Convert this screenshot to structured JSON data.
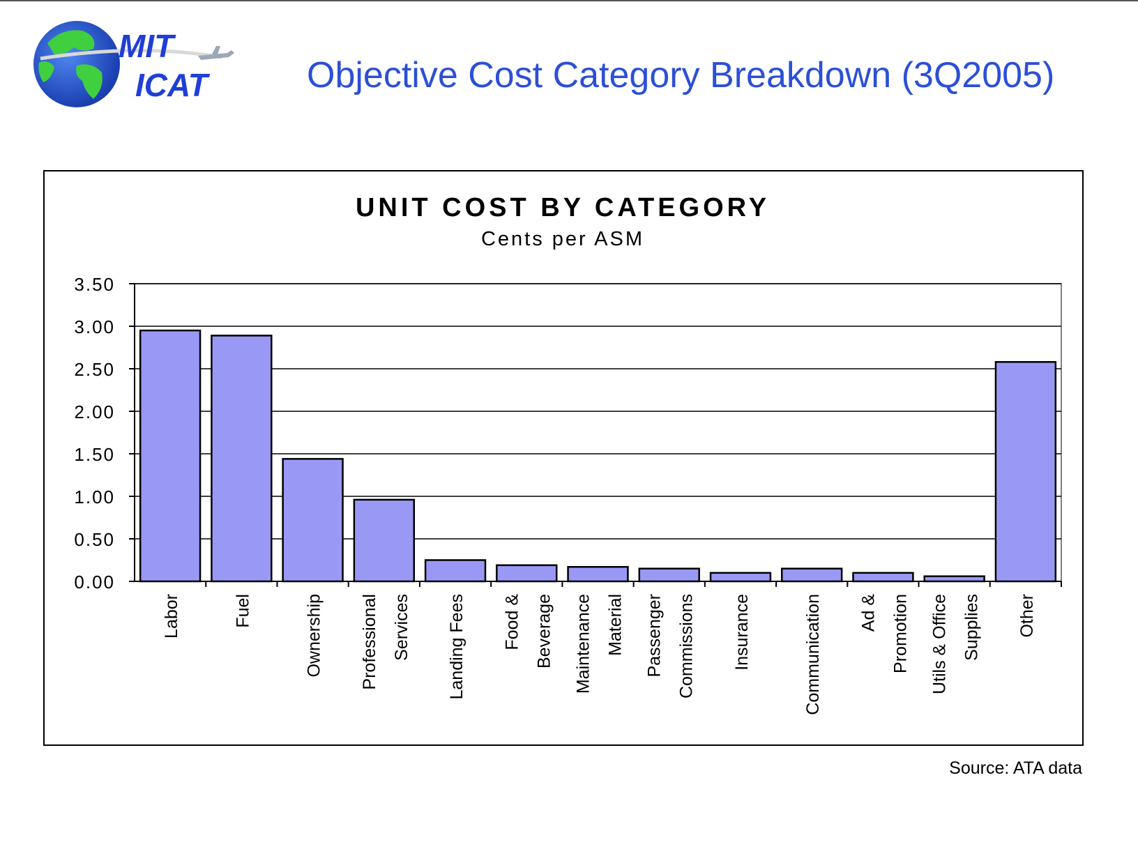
{
  "slide": {
    "title": "Objective Cost Category Breakdown (3Q2005)",
    "logo": {
      "line1": "MIT",
      "line2": "ICAT"
    },
    "source": "Source: ATA data"
  },
  "colors": {
    "bar_fill": "#9999f5",
    "title_color": "#2c4fd6",
    "logo_text": "#1f3fd6",
    "globe_ocean": "#2457d6",
    "globe_land": "#3fcf3f"
  },
  "chart_data": {
    "type": "bar",
    "title": "UNIT COST BY CATEGORY",
    "subtitle": "Cents per ASM",
    "categories": [
      [
        "Labor"
      ],
      [
        "Fuel"
      ],
      [
        "Ownership"
      ],
      [
        "Professional",
        "Services"
      ],
      [
        "Landing Fees"
      ],
      [
        "Food &",
        "Beverage"
      ],
      [
        "Maintenance",
        "Material"
      ],
      [
        "Passenger",
        "Commissions"
      ],
      [
        "Insurance"
      ],
      [
        "Communication"
      ],
      [
        "Ad &",
        "Promotion"
      ],
      [
        "Utils & Office",
        "Supplies"
      ],
      [
        "Other"
      ]
    ],
    "values": [
      2.95,
      2.89,
      1.44,
      0.96,
      0.25,
      0.19,
      0.17,
      0.15,
      0.1,
      0.15,
      0.1,
      0.06,
      2.58
    ],
    "ylim": [
      0,
      3.5
    ],
    "yticks": [
      "0.00",
      "0.50",
      "1.00",
      "1.50",
      "2.00",
      "2.50",
      "3.00",
      "3.50"
    ],
    "grid": true,
    "legend": "none"
  }
}
